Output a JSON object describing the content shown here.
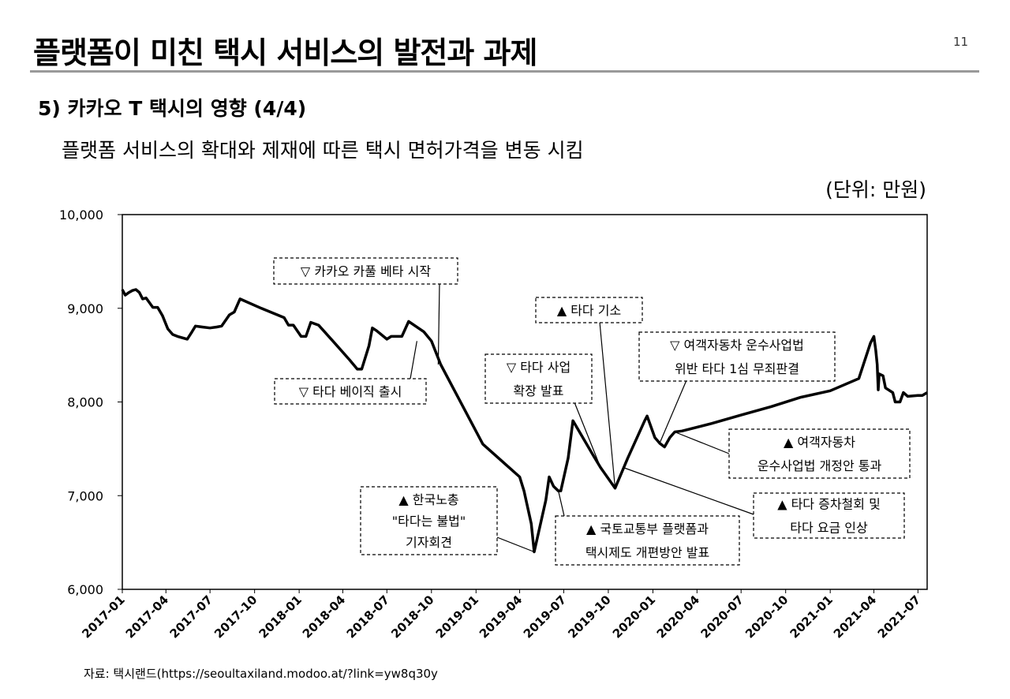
{
  "header": {
    "title": "플랫폼이 미친 택시 서비스의 발전과 과제",
    "page_number": "11",
    "section": "5) 카카오 T 택시의 영향 (4/4)",
    "subtitle": "플랫폼 서비스의 확대와 제재에 따른 택시 면허가격을 변동 시킴",
    "unit": "(단위:  만원)"
  },
  "source": "자료: 택시랜드(https://seoultaxiland.modoo.at/?link=yw8q30y",
  "chart_data": {
    "type": "line",
    "xlim": [
      "2017-01",
      "2021-07"
    ],
    "ylim": [
      6000,
      10000
    ],
    "y_ticks": [
      6000,
      7000,
      8000,
      9000,
      10000
    ],
    "y_tick_labels": [
      "6,000",
      "7,000",
      "8,000",
      "9,000",
      "10,000"
    ],
    "x_tick_labels": [
      "2017-01",
      "2017-04",
      "2017-07",
      "2017-10",
      "2018-01",
      "2018-04",
      "2018-07",
      "2018-10",
      "2019-01",
      "2019-04",
      "2019-07",
      "2019-10",
      "2020-01",
      "2020-04",
      "2020-07",
      "2020-10",
      "2021-01",
      "2021-04",
      "2021-07"
    ],
    "grid": false,
    "series": [
      {
        "color": "#000000",
        "points": [
          [
            "2017-01-01",
            9200
          ],
          [
            "2017-01-07",
            9140
          ],
          [
            "2017-01-15",
            9170
          ],
          [
            "2017-01-22",
            9190
          ],
          [
            "2017-01-29",
            9200
          ],
          [
            "2017-02-05",
            9170
          ],
          [
            "2017-02-12",
            9100
          ],
          [
            "2017-02-19",
            9110
          ],
          [
            "2017-02-26",
            9060
          ],
          [
            "2017-03-05",
            9010
          ],
          [
            "2017-03-15",
            9010
          ],
          [
            "2017-03-25",
            8920
          ],
          [
            "2017-04-05",
            8780
          ],
          [
            "2017-04-15",
            8720
          ],
          [
            "2017-04-25",
            8700
          ],
          [
            "2017-05-15",
            8670
          ],
          [
            "2017-05-25",
            8750
          ],
          [
            "2017-06-01",
            8810
          ],
          [
            "2017-06-15",
            8800
          ],
          [
            "2017-07-01",
            8790
          ],
          [
            "2017-07-15",
            8800
          ],
          [
            "2017-07-25",
            8810
          ],
          [
            "2017-08-10",
            8930
          ],
          [
            "2017-08-20",
            8960
          ],
          [
            "2017-09-01",
            9100
          ],
          [
            "2017-10-15",
            9000
          ],
          [
            "2017-12-01",
            8900
          ],
          [
            "2017-12-10",
            8820
          ],
          [
            "2017-12-20",
            8820
          ],
          [
            "2018-01-05",
            8700
          ],
          [
            "2018-01-15",
            8700
          ],
          [
            "2018-01-25",
            8850
          ],
          [
            "2018-02-10",
            8820
          ],
          [
            "2018-03-15",
            8630
          ],
          [
            "2018-04-15",
            8450
          ],
          [
            "2018-05-01",
            8350
          ],
          [
            "2018-05-10",
            8350
          ],
          [
            "2018-05-25",
            8600
          ],
          [
            "2018-06-01",
            8790
          ],
          [
            "2018-06-10",
            8760
          ],
          [
            "2018-07-01",
            8670
          ],
          [
            "2018-07-10",
            8700
          ],
          [
            "2018-08-01",
            8700
          ],
          [
            "2018-08-15",
            8860
          ],
          [
            "2018-09-15",
            8750
          ],
          [
            "2018-10-01",
            8650
          ],
          [
            "2018-10-20",
            8400
          ],
          [
            "2019-01-15",
            7550
          ],
          [
            "2019-04-01",
            7200
          ],
          [
            "2019-04-10",
            7050
          ],
          [
            "2019-04-25",
            6700
          ],
          [
            "2019-05-01",
            6400
          ],
          [
            "2019-05-25",
            6950
          ],
          [
            "2019-06-01",
            7200
          ],
          [
            "2019-06-10",
            7100
          ],
          [
            "2019-06-20",
            7050
          ],
          [
            "2019-06-25",
            7050
          ],
          [
            "2019-07-10",
            7400
          ],
          [
            "2019-07-20",
            7800
          ],
          [
            "2019-09-01",
            7420
          ],
          [
            "2019-09-15",
            7300
          ],
          [
            "2019-10-15",
            7080
          ],
          [
            "2019-11-10",
            7400
          ],
          [
            "2019-12-15",
            7800
          ],
          [
            "2019-12-20",
            7850
          ],
          [
            "2020-01-05",
            7620
          ],
          [
            "2020-01-15",
            7560
          ],
          [
            "2020-01-25",
            7520
          ],
          [
            "2020-02-05",
            7620
          ],
          [
            "2020-02-15",
            7680
          ],
          [
            "2020-03-01",
            7690
          ],
          [
            "2020-05-01",
            7770
          ],
          [
            "2020-07-01",
            7860
          ],
          [
            "2020-09-01",
            7950
          ],
          [
            "2020-11-01",
            8050
          ],
          [
            "2021-01-01",
            8120
          ],
          [
            "2021-03-01",
            8250
          ],
          [
            "2021-03-25",
            8630
          ],
          [
            "2021-04-01",
            8700
          ],
          [
            "2021-04-05",
            8550
          ],
          [
            "2021-04-08",
            8400
          ],
          [
            "2021-04-10",
            8130
          ],
          [
            "2021-04-12",
            8300
          ],
          [
            "2021-04-20",
            8280
          ],
          [
            "2021-04-25",
            8150
          ],
          [
            "2021-05-10",
            8100
          ],
          [
            "2021-05-15",
            8000
          ],
          [
            "2021-05-25",
            8000
          ],
          [
            "2021-06-01",
            8100
          ],
          [
            "2021-06-10",
            8060
          ],
          [
            "2021-07-01",
            8070
          ],
          [
            "2021-07-10",
            8070
          ],
          [
            "2021-07-20",
            8100
          ]
        ]
      }
    ],
    "annotations": [
      {
        "lines": [
          "▽ 카카오 카풀 베타 시작"
        ],
        "target": [
          "2018-10-15",
          8400
        ]
      },
      {
        "lines": [
          "▽ 타다 베이직 출시"
        ],
        "target": [
          "2018-09-01",
          8650
        ]
      },
      {
        "lines": [
          "▲ 타다 기소"
        ],
        "target": [
          "2019-10-15",
          7080
        ]
      },
      {
        "lines": [
          "▽ 타다 사업",
          "확장 발표"
        ],
        "target": [
          "2019-09-15",
          7300
        ]
      },
      {
        "lines": [
          "▽ 여객자동차 운수사업법",
          "위반 타다 1심 무죄판결"
        ],
        "target": [
          "2020-01-15",
          7560
        ]
      },
      {
        "lines": [
          "▲ 여객자동차",
          "운수사업법 개정안 통과"
        ],
        "target": [
          "2020-02-15",
          7680
        ]
      },
      {
        "lines": [
          "▲ 한국노총",
          "\"타다는 불법\"",
          "기자회견"
        ],
        "target": [
          "2019-05-01",
          6400
        ]
      },
      {
        "lines": [
          "▲ 국토교통부 플랫폼과",
          "택시제도 개편방안 발표"
        ],
        "target": [
          "2019-06-20",
          7050
        ]
      },
      {
        "lines": [
          "▲ 타다 증차철회 및",
          "타다 요금 인상"
        ],
        "target": [
          "2019-11-01",
          7300
        ]
      }
    ]
  }
}
